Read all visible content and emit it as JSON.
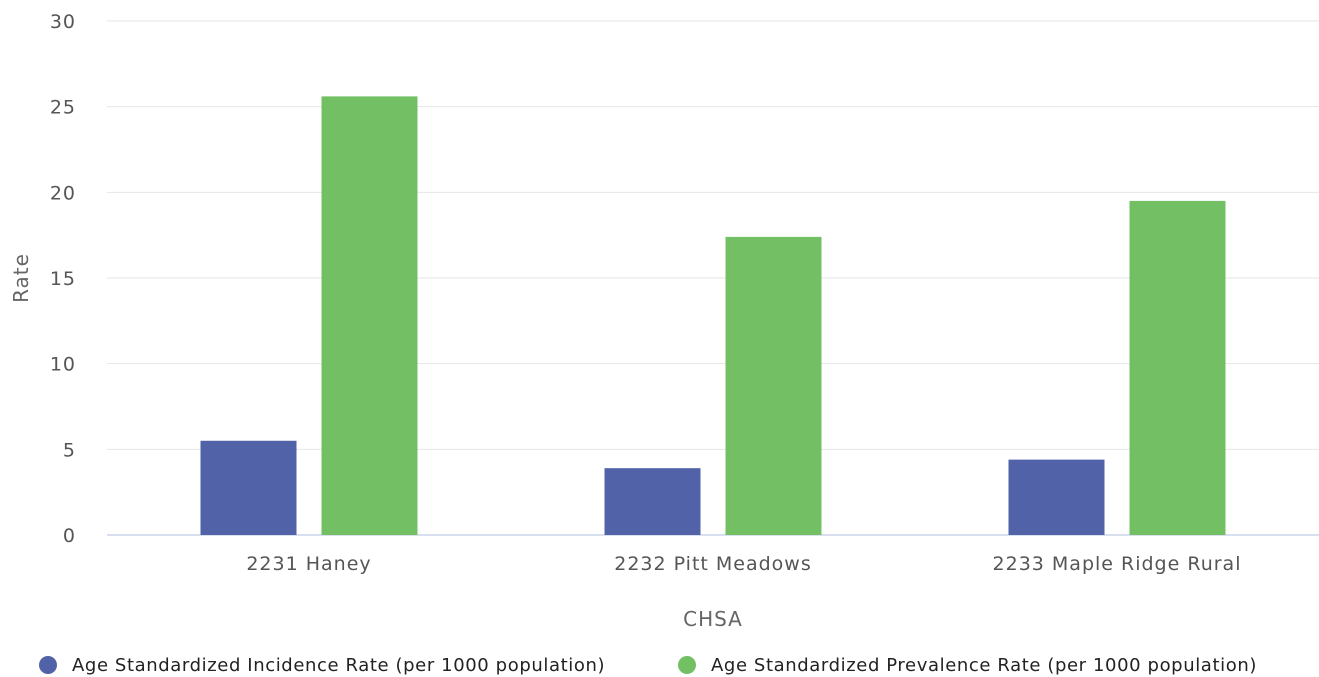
{
  "chart_data": {
    "type": "bar",
    "title": "",
    "xlabel": "CHSA",
    "ylabel": "Rate",
    "ylim": [
      0,
      30
    ],
    "yticks": [
      0,
      5,
      10,
      15,
      20,
      25,
      30
    ],
    "categories": [
      "2231 Haney",
      "2232 Pitt Meadows",
      "2233 Maple Ridge Rural"
    ],
    "series": [
      {
        "name": "Age Standardized Incidence Rate (per 1000 population)",
        "color": "#5262a8",
        "values": [
          5.5,
          3.9,
          4.4
        ]
      },
      {
        "name": "Age Standardized Prevalence Rate (per 1000 population)",
        "color": "#72c063",
        "values": [
          25.6,
          17.4,
          19.5
        ]
      }
    ],
    "grid": true,
    "legend_position": "bottom"
  }
}
